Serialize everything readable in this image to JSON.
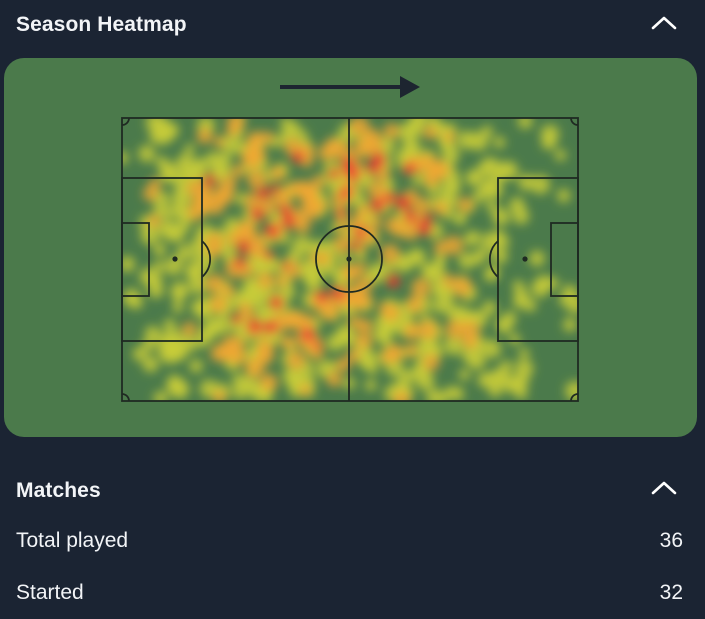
{
  "heatmap_section": {
    "title": "Season Heatmap",
    "collapse_icon": "chevron-up-icon",
    "direction_icon": "arrow-right-icon",
    "colors": {
      "pitch": "#4b7a4b",
      "low": "#c8cc3a",
      "mid": "#f0a733",
      "high": "#ea3a30",
      "lines": "#1f2a22"
    }
  },
  "matches_section": {
    "title": "Matches",
    "collapse_icon": "chevron-up-icon",
    "stats": [
      {
        "label": "Total played",
        "value": "36"
      },
      {
        "label": "Started",
        "value": "32"
      }
    ]
  }
}
